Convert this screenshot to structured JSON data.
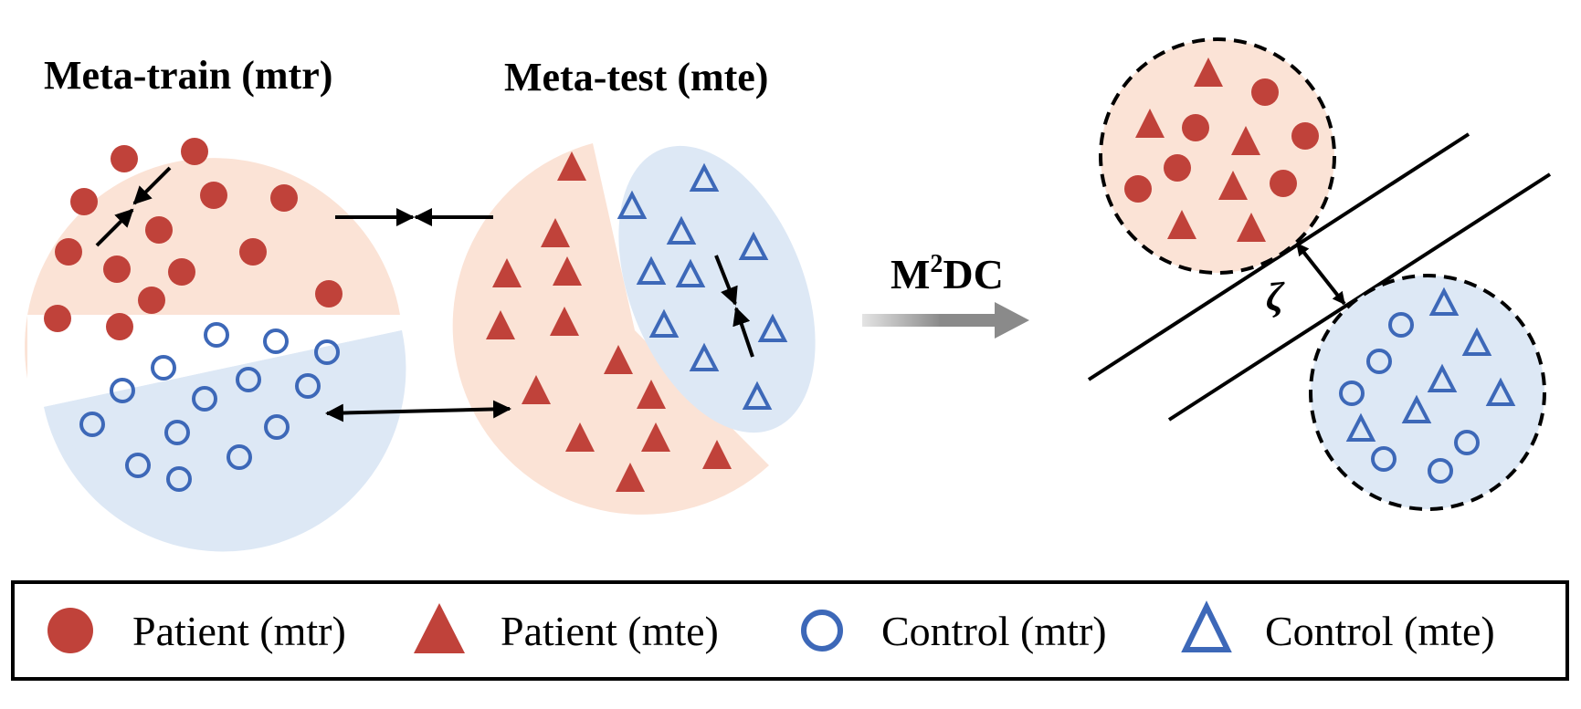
{
  "headings": {
    "meta_train": "Meta-train (mtr)",
    "meta_test": "Meta-test (mte)"
  },
  "method": {
    "prefix": "M",
    "superscript": "2",
    "suffix": "DC"
  },
  "margin_symbol": "ζ",
  "legend": [
    {
      "shape": "filled-circle",
      "label": "Patient (mtr)"
    },
    {
      "shape": "filled-triangle",
      "label": "Patient (mte)"
    },
    {
      "shape": "hollow-circle",
      "label": "Control (mtr)"
    },
    {
      "shape": "hollow-triangle",
      "label": "Control (mte)"
    }
  ],
  "colors": {
    "patient": "#c0423a",
    "control": "#3d68b8",
    "patient_region": "#fbe3d6",
    "control_region": "#dde8f5",
    "arrow_gradient_start": "#e4e4e4",
    "arrow_gradient_end": "#8a8a8a"
  }
}
